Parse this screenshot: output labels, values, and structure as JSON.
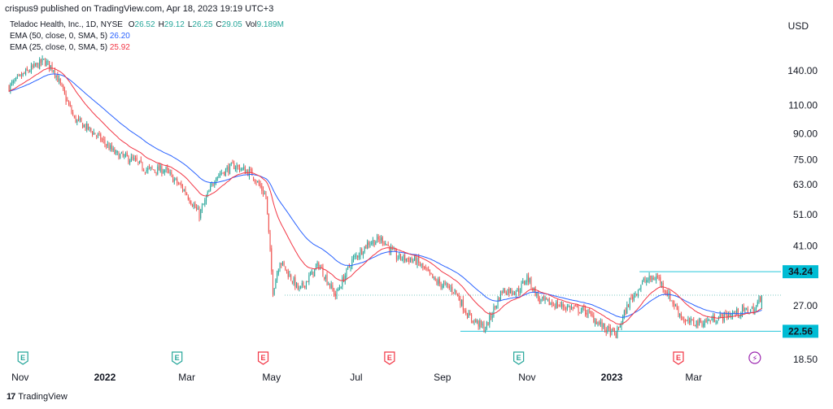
{
  "header": {
    "published": "crispus9 published on TradingView.com, Apr 18, 2023 19:19 UTC+3",
    "currency": "USD"
  },
  "legend": {
    "symbol": "Teladoc Health, Inc., 1D, NYSE",
    "ohlc": [
      {
        "k": "O",
        "v": "26.52"
      },
      {
        "k": "H",
        "v": "29.12"
      },
      {
        "k": "L",
        "v": "26.25"
      },
      {
        "k": "C",
        "v": "29.05"
      },
      {
        "k": "Vol",
        "v": "9.189M"
      }
    ],
    "ema50_label": "EMA (50, close, 0, SMA, 5)",
    "ema50_value": "26.20",
    "ema25_label": "EMA (25, close, 0, SMA, 5)",
    "ema25_value": "25.92"
  },
  "colors": {
    "up": "#26a69a",
    "down": "#ef5350",
    "ema50": "#2962ff",
    "ema25": "#f23645",
    "level": "#26c6da",
    "levelLabelBg": "#00bcd4",
    "earnings_up": "#26a69a",
    "earnings_down": "#f23645",
    "dividend": "#9c27b0"
  },
  "chart_data": {
    "type": "candlestick",
    "symbol": "Teladoc Health, Inc.",
    "interval": "1D",
    "exchange": "NYSE",
    "scale": "log",
    "y_ticks": [
      140.0,
      110.0,
      90.0,
      75.0,
      63.0,
      51.0,
      41.0,
      27.0,
      18.5
    ],
    "ylim": [
      17.5,
      185
    ],
    "x_tick_labels": [
      "Nov",
      "2022",
      "Mar",
      "May",
      "Jul",
      "Sep",
      "Nov",
      "2023",
      "Mar"
    ],
    "x_tick_days": [
      31,
      92,
      151,
      212,
      273,
      335,
      396,
      457,
      516
    ],
    "xlim": [
      20,
      580
    ],
    "levels": [
      {
        "price": 34.24,
        "label": "34.24",
        "x_start_day": 477
      },
      {
        "price": 22.56,
        "label": "22.56",
        "x_start_day": 348
      }
    ],
    "current_price": 29.05,
    "anchors": [
      [
        23,
        125
      ],
      [
        35,
        138
      ],
      [
        48,
        150
      ],
      [
        55,
        142
      ],
      [
        70,
        100
      ],
      [
        85,
        90
      ],
      [
        100,
        78
      ],
      [
        112,
        75
      ],
      [
        122,
        70
      ],
      [
        135,
        70
      ],
      [
        150,
        60
      ],
      [
        160,
        51
      ],
      [
        172,
        67
      ],
      [
        185,
        72
      ],
      [
        198,
        68
      ],
      [
        208,
        58
      ],
      [
        213,
        30
      ],
      [
        218,
        37
      ],
      [
        232,
        30
      ],
      [
        246,
        36
      ],
      [
        258,
        29
      ],
      [
        270,
        37
      ],
      [
        282,
        42
      ],
      [
        292,
        43
      ],
      [
        302,
        38
      ],
      [
        316,
        37
      ],
      [
        330,
        32
      ],
      [
        344,
        30
      ],
      [
        354,
        25
      ],
      [
        366,
        23
      ],
      [
        378,
        30
      ],
      [
        390,
        30
      ],
      [
        396,
        33
      ],
      [
        405,
        28
      ],
      [
        420,
        27
      ],
      [
        438,
        26
      ],
      [
        452,
        23
      ],
      [
        460,
        22
      ],
      [
        470,
        28
      ],
      [
        480,
        32
      ],
      [
        490,
        33
      ],
      [
        500,
        28
      ],
      [
        510,
        24
      ],
      [
        522,
        24
      ],
      [
        536,
        25
      ],
      [
        552,
        26
      ],
      [
        560,
        26.3
      ],
      [
        565,
        29.05
      ]
    ],
    "events": [
      {
        "day": 33,
        "type": "earnings",
        "label": "E",
        "beat": true
      },
      {
        "day": 144,
        "type": "earnings",
        "label": "E",
        "beat": true
      },
      {
        "day": 206,
        "type": "earnings",
        "label": "E",
        "beat": false
      },
      {
        "day": 297,
        "type": "earnings",
        "label": "E",
        "beat": false
      },
      {
        "day": 390,
        "type": "earnings",
        "label": "E",
        "beat": true
      },
      {
        "day": 505,
        "type": "earnings",
        "label": "E",
        "beat": false
      },
      {
        "day": 560,
        "type": "split",
        "label": "⚡",
        "beat": null
      }
    ]
  }
}
